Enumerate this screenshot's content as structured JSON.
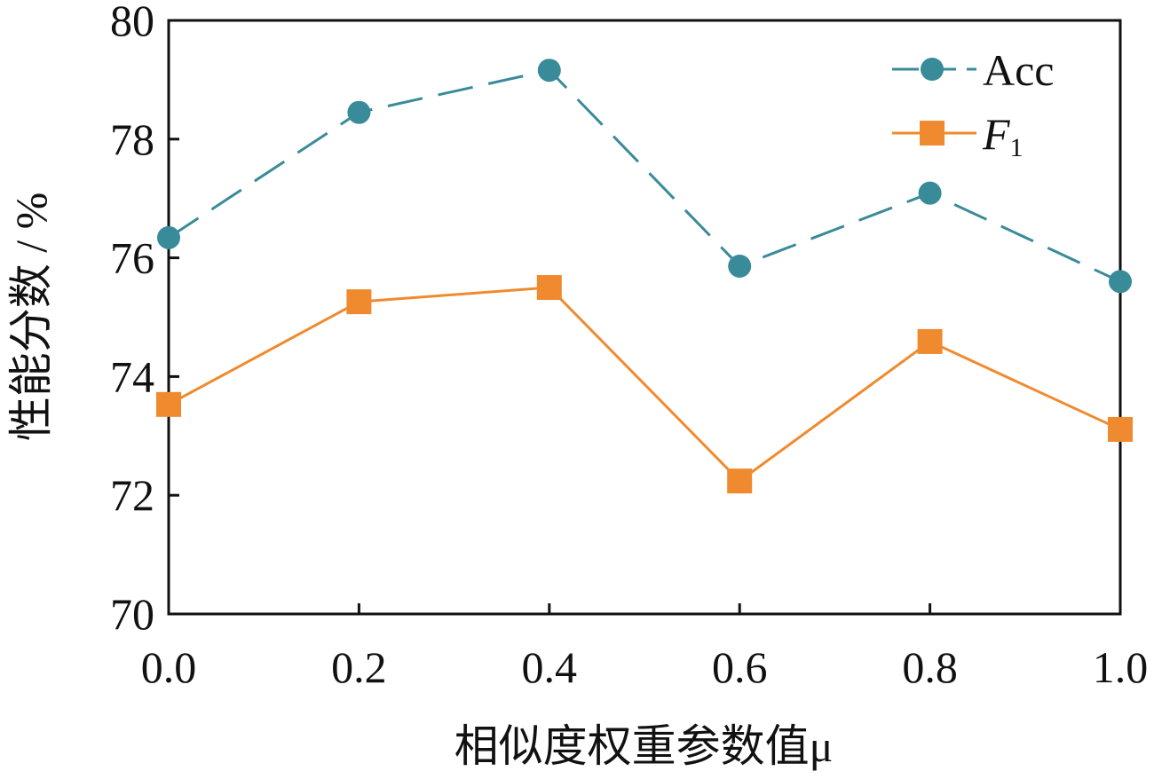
{
  "chart_data": {
    "type": "line",
    "title": "",
    "xlabel": "相似度权重参数值μ",
    "ylabel": "性能分数 / %",
    "x": [
      0.0,
      0.2,
      0.4,
      0.6,
      0.8,
      1.0
    ],
    "x_tick_labels": [
      "0.0",
      "0.2",
      "0.4",
      "0.6",
      "0.8",
      "1.0"
    ],
    "y_tick_labels": [
      "70",
      "72",
      "74",
      "76",
      "78",
      "80"
    ],
    "xlim": [
      0,
      1
    ],
    "ylim": [
      70,
      80
    ],
    "grid": false,
    "legend_position": "top-right",
    "series": [
      {
        "name": "Acc",
        "color": "#3a8b99",
        "marker": "circle",
        "line": "dashed",
        "values": [
          76.34,
          78.45,
          79.16,
          75.86,
          77.09,
          75.6
        ]
      },
      {
        "name": "F1",
        "name_main": "F",
        "name_sub": "1",
        "color": "#f08a2e",
        "marker": "square",
        "line": "solid",
        "values": [
          73.53,
          75.26,
          75.5,
          72.24,
          74.59,
          73.11
        ]
      }
    ]
  }
}
